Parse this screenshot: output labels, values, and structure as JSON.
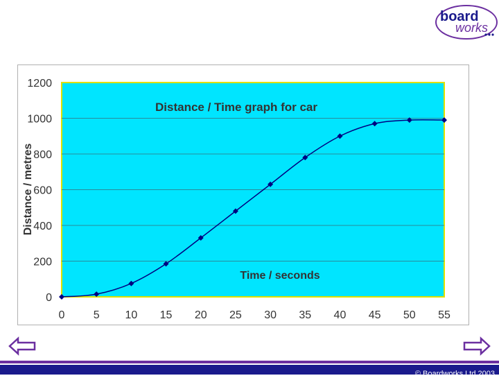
{
  "logo": {
    "line1": "board",
    "line2": "works"
  },
  "footer": {
    "copyright": "© Boardworks Ltd 2003"
  },
  "colors": {
    "plot_bg": "#00e5ff",
    "plot_border": "#e0e000",
    "series": "#000080",
    "footer_purple": "#6b2fa0",
    "footer_navy": "#1a1a8c"
  },
  "nav": {
    "prev_icon": "left-arrow-icon",
    "next_icon": "right-arrow-icon"
  },
  "chart_data": {
    "type": "line",
    "title": "Distance / Time graph for car",
    "xlabel": "Time / seconds",
    "ylabel": "Distance / metres",
    "x": [
      0,
      5,
      10,
      15,
      20,
      25,
      30,
      35,
      40,
      45,
      50,
      55
    ],
    "y": [
      0,
      15,
      75,
      185,
      330,
      480,
      630,
      780,
      900,
      970,
      990,
      990
    ],
    "xlim": [
      0,
      55
    ],
    "ylim": [
      0,
      1200
    ],
    "xticks": [
      "0",
      "5",
      "10",
      "15",
      "20",
      "25",
      "30",
      "35",
      "40",
      "45",
      "50",
      "55"
    ],
    "yticks": [
      "0",
      "200",
      "400",
      "600",
      "800",
      "1000",
      "1200"
    ],
    "grid": true,
    "legend": "none",
    "marker": "diamond"
  }
}
